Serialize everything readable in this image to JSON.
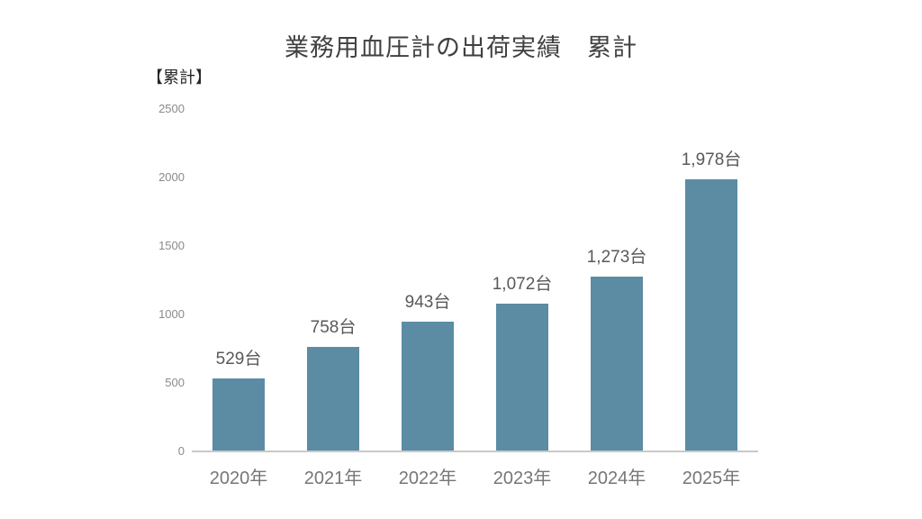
{
  "header": {
    "title": "業務用血圧計の出荷実績　累計",
    "unit_label": "【累計】"
  },
  "colors": {
    "bar": "#5B8CA4",
    "title_text": "#404040",
    "data_label_text": "#595959",
    "axis_tick_text": "#8a8a8a",
    "x_label_text": "#767676",
    "axis_line": "#c9c9c9",
    "background": "#ffffff"
  },
  "chart_data": {
    "type": "bar",
    "title": "業務用血圧計の出荷実績　累計",
    "subtitle": "【累計】",
    "categories": [
      "2020年",
      "2021年",
      "2022年",
      "2023年",
      "2024年",
      "2025年"
    ],
    "values": [
      529,
      758,
      943,
      1072,
      1273,
      1978
    ],
    "data_labels": [
      "529台",
      "758台",
      "943台",
      "1,072台",
      "1,273台",
      "1,978台"
    ],
    "xlabel": "",
    "ylabel": "",
    "ylim": [
      0,
      2500
    ],
    "ytick_step": 500,
    "yticks": [
      "0",
      "500",
      "1000",
      "1500",
      "2000",
      "2500"
    ],
    "grid": false,
    "legend": false,
    "bar_color": "#5B8CA4"
  }
}
